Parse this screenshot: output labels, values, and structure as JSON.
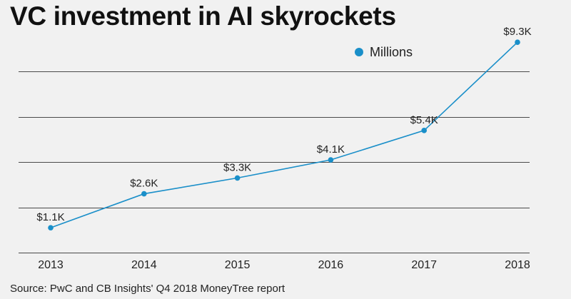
{
  "title": "VC investment in AI skyrockets",
  "source": "Source: PwC and CB Insights' Q4 2018 MoneyTree report",
  "colors": {
    "series": "#1a8fc9",
    "grid": "#4a4a4a",
    "background": "#f1f1f1"
  },
  "chart_data": {
    "type": "line",
    "title": "VC investment in AI skyrockets",
    "xlabel": "",
    "ylabel": "",
    "x": [
      "2013",
      "2014",
      "2015",
      "2016",
      "2017",
      "2018"
    ],
    "series": [
      {
        "name": "Millions",
        "values": [
          1100,
          2600,
          3300,
          4100,
          5400,
          9300
        ],
        "labels": [
          "$1.1K",
          "$2.6K",
          "$3.3K",
          "$4.1K",
          "$5.4K",
          "$9.3K"
        ]
      }
    ],
    "ylim": [
      0,
      10000
    ],
    "grid": true,
    "legend": "top-right"
  }
}
